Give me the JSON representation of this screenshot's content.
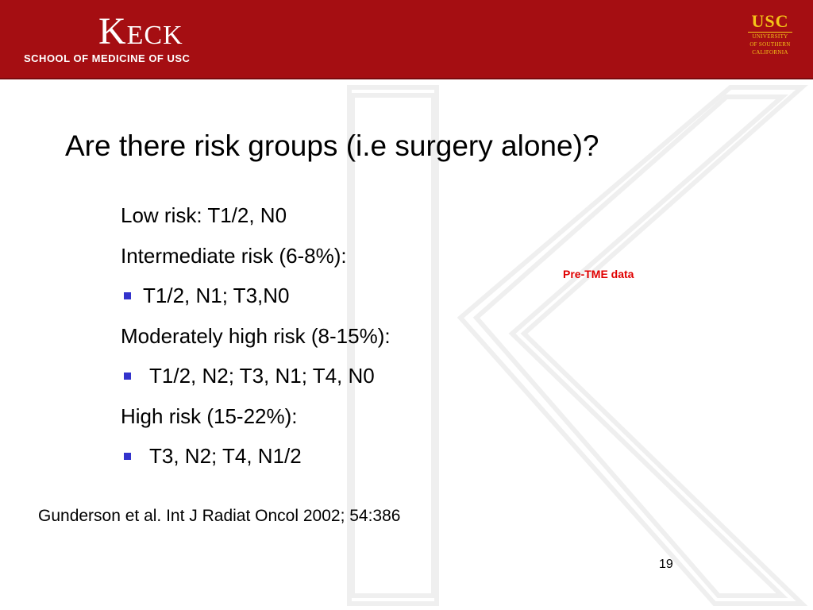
{
  "header": {
    "brand_name": "Keck",
    "brand_sub": "SCHOOL OF MEDICINE OF USC",
    "usc_logo": {
      "mark": "USC",
      "lines": [
        "UNIVERSITY",
        "OF SOUTHERN",
        "CALIFORNIA"
      ]
    },
    "colors": {
      "background": "#a50e12",
      "logo_gold": "#f5c518"
    }
  },
  "slide": {
    "title": "Are there risk groups (i.e surgery alone)?",
    "items": [
      {
        "type": "text",
        "text": "Low risk: T1/2, N0"
      },
      {
        "type": "text",
        "text": "Intermediate risk (6-8%):"
      },
      {
        "type": "bullet",
        "text": "T1/2, N1; T3,N0"
      },
      {
        "type": "text",
        "text": "Moderately high risk (8-15%):"
      },
      {
        "type": "bullet",
        "text": "T1/2, N2; T3, N1; T4, N0"
      },
      {
        "type": "text",
        "text": "High risk (15-22%):"
      },
      {
        "type": "bullet",
        "text": "T3, N2; T4, N1/2"
      }
    ],
    "note": "Pre-TME data",
    "citation": "Gunderson et al. Int J Radiat Oncol 2002; 54:386",
    "page_number": "19",
    "colors": {
      "bullet": "#3333cc",
      "note": "#e00000"
    }
  }
}
